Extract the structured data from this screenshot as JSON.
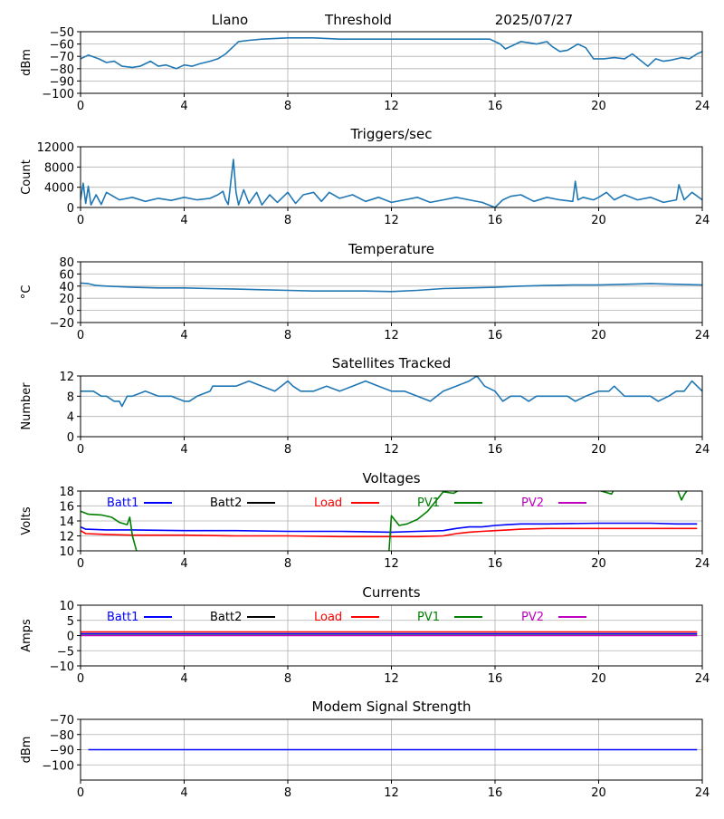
{
  "header": {
    "site": "Llano",
    "label": "Threshold",
    "date": "2025/07/27"
  },
  "legend_colors": {
    "Batt1": "#0000ff",
    "Batt2": "#000000",
    "Load": "#ff0000",
    "PV1": "#008000",
    "PV2": "#c000c0"
  },
  "chart_data": [
    {
      "type": "line",
      "title": "",
      "xlabel": "",
      "ylabel": "dBm",
      "xlim": [
        0,
        24
      ],
      "ylim": [
        -100,
        -50
      ],
      "xticks": [
        0,
        4,
        8,
        12,
        16,
        20,
        24
      ],
      "yticks": [
        -100,
        -90,
        -80,
        -70,
        -60,
        -50
      ],
      "grid": true,
      "legend": "none",
      "series": [
        {
          "color": "#1f77b4",
          "x": [
            0,
            0.3,
            0.7,
            1,
            1.3,
            1.6,
            2,
            2.3,
            2.7,
            3,
            3.3,
            3.7,
            4,
            4.3,
            4.6,
            5,
            5.3,
            5.6,
            5.9,
            6.1,
            6.5,
            7,
            8,
            9,
            10,
            11,
            12,
            13,
            14,
            15,
            15.8,
            16.2,
            16.4,
            16.7,
            17,
            17.3,
            17.6,
            18,
            18.2,
            18.5,
            18.8,
            19.2,
            19.5,
            19.8,
            20.2,
            20.6,
            21,
            21.3,
            21.6,
            21.9,
            22.2,
            22.5,
            22.8,
            23.2,
            23.5,
            23.8,
            24
          ],
          "y": [
            -72,
            -69,
            -72,
            -75,
            -74,
            -78,
            -79,
            -78,
            -74,
            -78,
            -77,
            -80,
            -77,
            -78,
            -76,
            -74,
            -72,
            -68,
            -62,
            -58,
            -57,
            -56,
            -55,
            -55,
            -56,
            -56,
            -56,
            -56,
            -56,
            -56,
            -56,
            -60,
            -64,
            -61,
            -58,
            -59,
            -60,
            -58,
            -62,
            -66,
            -65,
            -60,
            -63,
            -72,
            -72,
            -71,
            -72,
            -68,
            -73,
            -78,
            -72,
            -74,
            -73,
            -71,
            -72,
            -68,
            -66
          ]
        }
      ]
    },
    {
      "type": "line",
      "title": "Triggers/sec",
      "xlabel": "",
      "ylabel": "Count",
      "xlim": [
        0,
        24
      ],
      "ylim": [
        0,
        12000
      ],
      "xticks": [
        0,
        4,
        8,
        12,
        16,
        20,
        24
      ],
      "yticks": [
        0,
        4000,
        8000,
        12000
      ],
      "grid": true,
      "legend": "none",
      "series": [
        {
          "color": "#1f77b4",
          "x": [
            0,
            0.1,
            0.2,
            0.3,
            0.4,
            0.6,
            0.8,
            1,
            1.5,
            2,
            2.5,
            3,
            3.5,
            4,
            4.5,
            5,
            5.3,
            5.5,
            5.6,
            5.7,
            5.8,
            5.9,
            6.0,
            6.1,
            6.3,
            6.5,
            6.8,
            7,
            7.3,
            7.6,
            8,
            8.3,
            8.6,
            9,
            9.3,
            9.6,
            10,
            10.5,
            11,
            11.5,
            12,
            12.5,
            13,
            13.5,
            14,
            14.5,
            15,
            15.5,
            16,
            16.3,
            16.6,
            17,
            17.5,
            18,
            18.5,
            19,
            19.1,
            19.2,
            19.4,
            19.8,
            20,
            20.3,
            20.6,
            21,
            21.5,
            22,
            22.5,
            23,
            23.1,
            23.3,
            23.6,
            24
          ],
          "y": [
            1500,
            4800,
            800,
            4200,
            500,
            2500,
            600,
            3000,
            1500,
            2000,
            1200,
            1800,
            1400,
            2000,
            1500,
            1800,
            2500,
            3200,
            1500,
            600,
            5000,
            9500,
            3000,
            500,
            3500,
            800,
            3000,
            500,
            2500,
            1000,
            3000,
            800,
            2500,
            3000,
            1200,
            3000,
            1800,
            2500,
            1200,
            2000,
            1000,
            1500,
            2000,
            1000,
            1500,
            2000,
            1500,
            1000,
            0,
            1500,
            2200,
            2500,
            1200,
            2000,
            1500,
            1200,
            5200,
            1500,
            2000,
            1500,
            2000,
            3000,
            1500,
            2500,
            1500,
            2000,
            1000,
            1500,
            4500,
            1500,
            3000,
            1500
          ]
        }
      ]
    },
    {
      "type": "line",
      "title": "Temperature",
      "xlabel": "",
      "ylabel": "°C",
      "xlim": [
        0,
        24
      ],
      "ylim": [
        -20,
        80
      ],
      "xticks": [
        0,
        4,
        8,
        12,
        16,
        20,
        24
      ],
      "yticks": [
        -20,
        0,
        20,
        40,
        60,
        80
      ],
      "grid": true,
      "legend": "none",
      "series": [
        {
          "color": "#1f77b4",
          "x": [
            0,
            0.3,
            0.6,
            1,
            2,
            3,
            4,
            5,
            6,
            7,
            8,
            9,
            10,
            11,
            12,
            13,
            14,
            15,
            16,
            17,
            18,
            19,
            20,
            21,
            22,
            23,
            24
          ],
          "y": [
            45,
            44,
            41,
            40,
            38,
            37,
            37,
            36,
            35,
            34,
            33,
            32,
            32,
            32,
            31,
            33,
            36,
            37,
            38,
            40,
            41,
            42,
            42,
            43,
            44,
            43,
            42
          ]
        }
      ]
    },
    {
      "type": "line",
      "title": "Satellites Tracked",
      "xlabel": "",
      "ylabel": "Number",
      "xlim": [
        0,
        24
      ],
      "ylim": [
        0,
        12
      ],
      "xticks": [
        0,
        4,
        8,
        12,
        16,
        20,
        24
      ],
      "yticks": [
        0,
        4,
        8,
        12
      ],
      "grid": true,
      "legend": "none",
      "series": [
        {
          "color": "#1f77b4",
          "x": [
            0,
            0.5,
            0.8,
            1,
            1.3,
            1.5,
            1.6,
            1.7,
            1.8,
            2.0,
            2.5,
            3,
            3.5,
            4,
            4.2,
            4.5,
            5,
            5.1,
            5.5,
            6,
            6.5,
            7,
            7.5,
            8,
            8.2,
            8.5,
            9,
            9.5,
            10,
            10.5,
            11,
            11.5,
            12,
            12.5,
            13,
            13.5,
            14,
            14.5,
            15,
            15.3,
            15.6,
            16,
            16.3,
            16.6,
            17,
            17.3,
            17.6,
            18,
            18.4,
            18.8,
            19.1,
            19.5,
            20,
            20.4,
            20.6,
            21,
            21.3,
            21.6,
            22,
            22.3,
            22.7,
            23,
            23.3,
            23.6,
            24
          ],
          "y": [
            9,
            9,
            8,
            8,
            7,
            7,
            6,
            7,
            8,
            8,
            9,
            8,
            8,
            7,
            7,
            8,
            9,
            10,
            10,
            10,
            11,
            10,
            9,
            11,
            10,
            9,
            9,
            10,
            9,
            10,
            11,
            10,
            9,
            9,
            8,
            7,
            9,
            10,
            11,
            12,
            10,
            9,
            7,
            8,
            8,
            7,
            8,
            8,
            8,
            8,
            7,
            8,
            9,
            9,
            10,
            8,
            8,
            8,
            8,
            7,
            8,
            9,
            9,
            11,
            9
          ]
        }
      ]
    },
    {
      "type": "line",
      "title": "Voltages",
      "xlabel": "",
      "ylabel": "Volts",
      "xlim": [
        0,
        24
      ],
      "ylim": [
        10,
        18
      ],
      "xticks": [
        0,
        4,
        8,
        12,
        16,
        20,
        24
      ],
      "yticks": [
        10,
        12,
        14,
        16,
        18
      ],
      "grid": true,
      "legend": "top",
      "series": [
        {
          "name": "Batt1",
          "color": "#0000ff",
          "x": [
            0,
            0.2,
            1,
            2,
            4,
            6,
            8,
            10,
            12,
            13,
            14,
            14.5,
            15,
            15.5,
            16,
            16.5,
            17,
            18,
            20,
            22,
            23,
            23.8
          ],
          "y": [
            13.2,
            12.9,
            12.8,
            12.8,
            12.7,
            12.7,
            12.6,
            12.6,
            12.5,
            12.6,
            12.7,
            13.0,
            13.2,
            13.2,
            13.4,
            13.5,
            13.6,
            13.6,
            13.7,
            13.7,
            13.6,
            13.6
          ]
        },
        {
          "name": "Batt2",
          "color": "#000000",
          "x": [],
          "y": []
        },
        {
          "name": "Load",
          "color": "#ff0000",
          "x": [
            0,
            0.2,
            1,
            2,
            4,
            6,
            8,
            10,
            12,
            13,
            14,
            14.5,
            15,
            15.5,
            16,
            16.5,
            17,
            18,
            20,
            22,
            23,
            23.8
          ],
          "y": [
            12.7,
            12.3,
            12.2,
            12.1,
            12.1,
            12.0,
            12.0,
            11.9,
            11.9,
            11.9,
            12.0,
            12.3,
            12.5,
            12.6,
            12.7,
            12.8,
            12.9,
            13.0,
            13.0,
            13.0,
            13.0,
            13.0
          ]
        },
        {
          "name": "PV1",
          "color": "#008000",
          "x": [
            0,
            0.3,
            0.8,
            1.2,
            1.5,
            1.8,
            1.9,
            2.0,
            2.2,
            11.9,
            12.0,
            12.3,
            12.6,
            13.0,
            13.4,
            14.0,
            14.4,
            14.7,
            19.8,
            20.5,
            20.6,
            20.7,
            23.0,
            23.2,
            23.3,
            23.5
          ],
          "y": [
            15.3,
            14.9,
            14.8,
            14.5,
            13.8,
            13.5,
            14.5,
            12.0,
            9.5,
            9.5,
            14.7,
            13.4,
            13.6,
            14.2,
            15.3,
            17.9,
            17.7,
            18.3,
            18.3,
            17.6,
            18.3,
            18.5,
            18.5,
            16.8,
            17.5,
            18.5
          ]
        },
        {
          "name": "PV2",
          "color": "#c000c0",
          "x": [],
          "y": []
        }
      ]
    },
    {
      "type": "line",
      "title": "Currents",
      "xlabel": "",
      "ylabel": "Amps",
      "xlim": [
        0,
        24
      ],
      "ylim": [
        -10,
        10
      ],
      "xticks": [
        0,
        4,
        8,
        12,
        16,
        20,
        24
      ],
      "yticks": [
        -10,
        -5,
        0,
        5,
        10
      ],
      "grid": true,
      "legend": "top",
      "series": [
        {
          "name": "Batt1",
          "color": "#0000ff",
          "x": [
            0,
            23.8
          ],
          "y": [
            0.6,
            0.6
          ]
        },
        {
          "name": "Batt2",
          "color": "#000000",
          "x": [],
          "y": []
        },
        {
          "name": "Load",
          "color": "#ff0000",
          "x": [
            0,
            23.8
          ],
          "y": [
            1.2,
            1.2
          ]
        },
        {
          "name": "PV1",
          "color": "#008000",
          "x": [
            0,
            23.8
          ],
          "y": [
            0.1,
            0.1
          ]
        },
        {
          "name": "PV2",
          "color": "#c000c0",
          "x": [
            0,
            23.8
          ],
          "y": [
            0.0,
            0.0
          ]
        }
      ]
    },
    {
      "type": "line",
      "title": "Modem Signal Strength",
      "xlabel": "",
      "ylabel": "dBm",
      "xlim": [
        0,
        24
      ],
      "ylim": [
        -110,
        -70
      ],
      "xticks": [
        0,
        4,
        8,
        12,
        16,
        20,
        24
      ],
      "yticks": [
        -100,
        -90,
        -80,
        -70
      ],
      "grid": true,
      "legend": "none",
      "series": [
        {
          "color": "#0000ff",
          "x": [
            0.3,
            23.8
          ],
          "y": [
            -90,
            -90
          ]
        }
      ]
    }
  ]
}
